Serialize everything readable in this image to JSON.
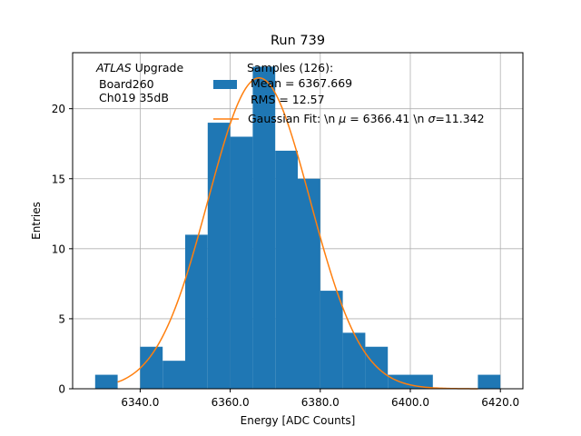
{
  "chart_data": {
    "type": "bar",
    "title": "Run 739",
    "xlabel": "Energy [ADC Counts]",
    "ylabel": "Entries",
    "xlim": [
      6325,
      6425
    ],
    "ylim": [
      0,
      24
    ],
    "grid": true,
    "xticks": [
      6340,
      6360,
      6380,
      6400,
      6420
    ],
    "xtick_labels": [
      "6340.0",
      "6360.0",
      "6380.0",
      "6400.0",
      "6420.0"
    ],
    "yticks": [
      0,
      5,
      10,
      15,
      20
    ],
    "ytick_labels": [
      "0",
      "5",
      "10",
      "15",
      "20"
    ],
    "annotation": {
      "line1_italic": "ATLAS",
      "line1_rest": " Upgrade",
      "line2": "Board260",
      "line3": "Ch019 35dB"
    },
    "legend": {
      "placement": "top-right",
      "hist_label_lines": [
        "Samples (126):",
        " Mean = 6367.669",
        " RMS = 12.57"
      ],
      "fit_label_prefix": "Gaussian Fit: \\n ",
      "fit_label_mu": "μ",
      "fit_label_middle": " = 6366.41 \\n ",
      "fit_label_sigma": "σ",
      "fit_label_suffix": "=11.342"
    },
    "colors": {
      "histogram": "#1f77b4",
      "fit": "#ff7f0e",
      "grid": "#b0b0b0"
    },
    "series": [
      {
        "name": "Samples (126)",
        "kind": "histogram",
        "bin_edges": [
          6330,
          6335,
          6340,
          6345,
          6350,
          6355,
          6360,
          6365,
          6370,
          6375,
          6380,
          6385,
          6390,
          6395,
          6400,
          6405,
          6410,
          6415,
          6420
        ],
        "counts": [
          1,
          0,
          3,
          2,
          11,
          19,
          18,
          23,
          17,
          15,
          7,
          4,
          3,
          1,
          1,
          0,
          0,
          1
        ]
      },
      {
        "name": "Gaussian Fit",
        "kind": "line",
        "mu": 6366.41,
        "sigma": 11.342,
        "amplitude": 22.2,
        "x_range": [
          6335,
          6415
        ]
      }
    ]
  }
}
